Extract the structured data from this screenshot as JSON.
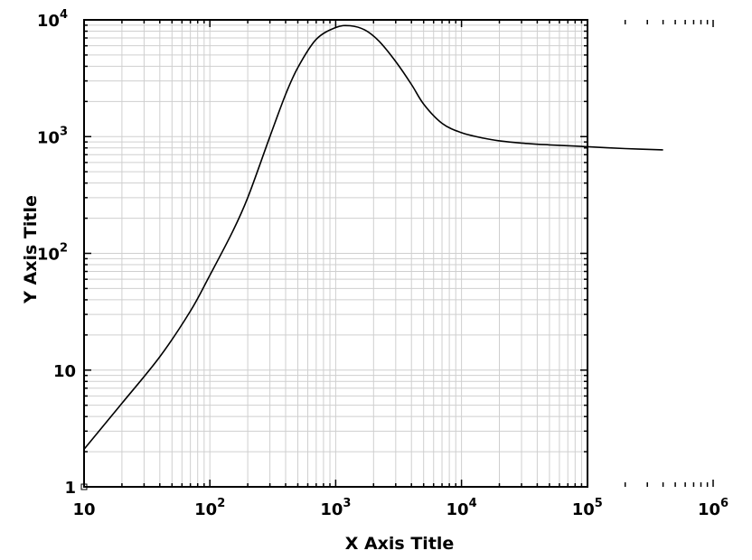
{
  "chart_data": {
    "type": "line",
    "xlabel": "X Axis Title",
    "ylabel": "Y Axis Title",
    "x_scale": "log",
    "y_scale": "log",
    "xlim": [
      10,
      1000000
    ],
    "ylim": [
      1,
      10000
    ],
    "frame_xmax": 100000,
    "grid": true,
    "x_ticks": [
      {
        "base": "10",
        "exp": ""
      },
      {
        "base": "10",
        "exp": "2"
      },
      {
        "base": "10",
        "exp": "3"
      },
      {
        "base": "10",
        "exp": "4"
      },
      {
        "base": "10",
        "exp": "5"
      },
      {
        "base": "10",
        "exp": "6"
      }
    ],
    "y_ticks": [
      {
        "base": "1",
        "exp": ""
      },
      {
        "base": "10",
        "exp": ""
      },
      {
        "base": "10",
        "exp": "2"
      },
      {
        "base": "10",
        "exp": "3"
      },
      {
        "base": "10",
        "exp": "4"
      }
    ],
    "series": [
      {
        "x": [
          10,
          20,
          40,
          70,
          100,
          150,
          200,
          300,
          400,
          500,
          700,
          1000,
          1300,
          1700,
          2200,
          3000,
          4000,
          5000,
          7000,
          10000,
          15000,
          20000,
          30000,
          50000,
          100000,
          200000,
          400000
        ],
        "y": [
          2.1,
          5.2,
          13,
          32,
          65,
          150,
          300,
          1000,
          2300,
          3900,
          6800,
          8600,
          8900,
          8200,
          6600,
          4400,
          2800,
          1900,
          1300,
          1080,
          970,
          920,
          880,
          850,
          820,
          790,
          770
        ]
      }
    ]
  }
}
